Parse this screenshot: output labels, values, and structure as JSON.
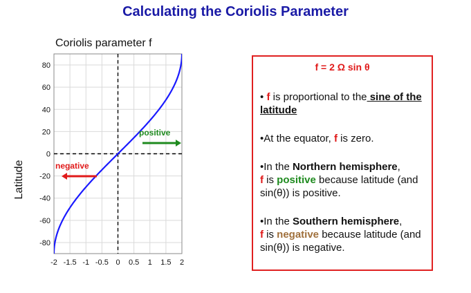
{
  "slide": {
    "title": "Calculating the Coriolis Parameter"
  },
  "chart_data": {
    "type": "line",
    "title": "Coriolis parameter f",
    "xlabel": "",
    "ylabel": "Latitude",
    "xlim": [
      -2,
      2
    ],
    "ylim": [
      -90,
      90
    ],
    "x_ticks": [
      -2,
      -1.5,
      -1,
      -0.5,
      0,
      0.5,
      1,
      1.5,
      2
    ],
    "x_tick_labels": [
      "-2",
      "-1.5",
      "-1",
      "-0.5",
      "0",
      "0.5",
      "1",
      "1.5",
      "2"
    ],
    "y_ticks": [
      80,
      60,
      40,
      20,
      0,
      -20,
      -40,
      -60,
      -80
    ],
    "y_tick_labels": [
      "80",
      "60",
      "40",
      "20",
      "0",
      "-20",
      "-40",
      "-60",
      "-80"
    ],
    "grid": true,
    "curve_color": "#1a1aff",
    "series": [
      {
        "x": [
          -1.97,
          -1.88,
          -1.73,
          -1.41,
          -1.0,
          -0.52,
          0,
          0.52,
          1.0,
          1.41,
          1.73,
          1.88,
          1.97
        ],
        "y": [
          -80,
          -70,
          -60,
          -45,
          -30,
          -15,
          0,
          15,
          30,
          45,
          60,
          70,
          80
        ]
      }
    ],
    "annotations": [
      {
        "text": "positive",
        "color": "#1e8a1e",
        "arrow": "right"
      },
      {
        "text": "negative",
        "color": "#e01a1a",
        "arrow": "left"
      }
    ]
  },
  "info": {
    "formula": "f = 2 Ω sin θ",
    "p1": {
      "bullet": "•",
      "f": "f",
      "t1": " is proportional to the",
      "t2": " sine of the latitude"
    },
    "p2": {
      "t1": "•At the equator, ",
      "f": "f",
      "t2": " is zero."
    },
    "p3": {
      "t1": "•In the ",
      "hemi": "Northern hemisphere",
      "t2": ",",
      "f": "f",
      "t3": " is ",
      "sign": "positive",
      "t4": " because latitude (and sin(θ))  is positive."
    },
    "p4": {
      "t1": "•In the ",
      "hemi": "Southern hemisphere",
      "t2": ",",
      "f": "f",
      "t3": " is ",
      "sign": "negative",
      "t4": " because latitude (and sin(θ)) is negative."
    }
  }
}
